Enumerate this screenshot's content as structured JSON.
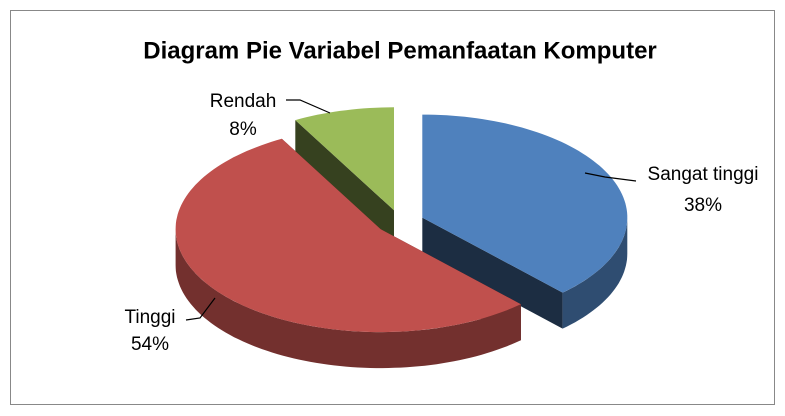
{
  "chart_data": {
    "type": "pie",
    "title": "Diagram Pie Variabel Pemanfaatan Komputer",
    "categories": [
      "Sangat tinggi",
      "Tinggi",
      "Rendah"
    ],
    "values": [
      38,
      54,
      8
    ],
    "value_labels": [
      "38%",
      "54%",
      "8%"
    ],
    "colors": [
      "#4f81bd",
      "#c0504d",
      "#9bbb59"
    ]
  }
}
